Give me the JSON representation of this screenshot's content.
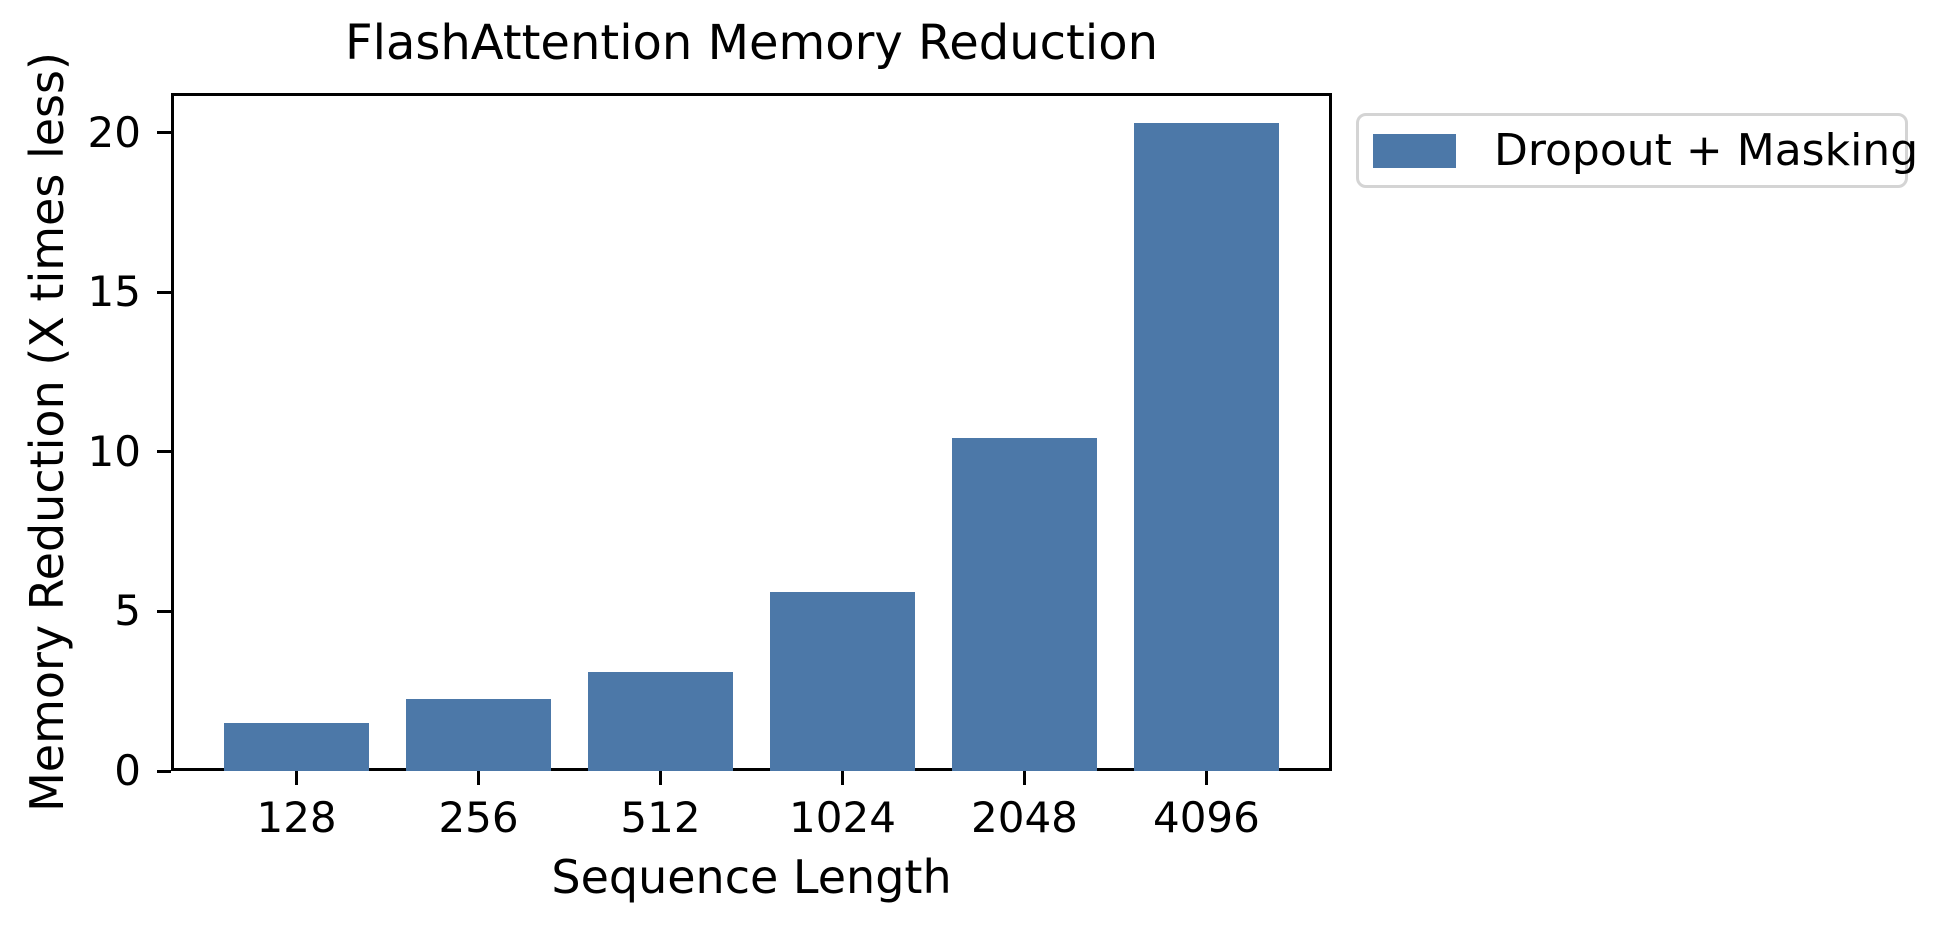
{
  "chart_data": {
    "type": "bar",
    "title": "FlashAttention Memory Reduction",
    "xlabel": "Sequence Length",
    "ylabel": "Memory Reduction (X times less)",
    "categories": [
      "128",
      "256",
      "512",
      "1024",
      "2048",
      "4096"
    ],
    "series": [
      {
        "name": "Dropout + Masking",
        "values": [
          1.5,
          2.25,
          3.1,
          5.6,
          10.45,
          20.3
        ]
      }
    ],
    "yticks": [
      0,
      5,
      10,
      15,
      20
    ],
    "ylim": [
      0,
      21.25
    ],
    "bar_color": "#4C78A8",
    "axis_color": "#000000",
    "legend_border_color": "#d4d4d4",
    "legend_position": "outside-upper-right",
    "grid": false
  }
}
